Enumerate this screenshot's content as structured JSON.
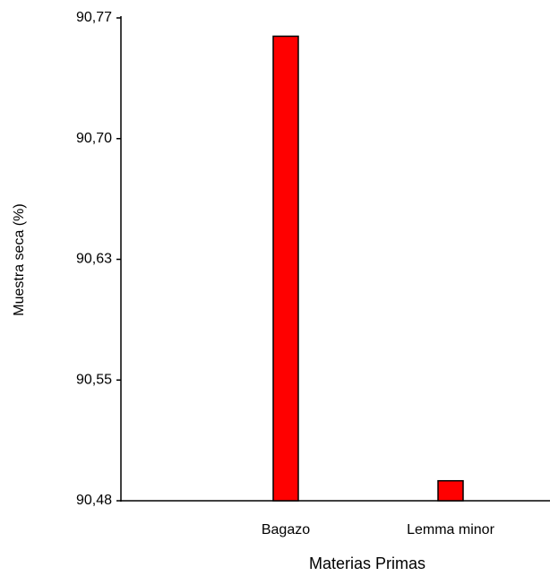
{
  "chart_data": {
    "type": "bar",
    "x_label": "Materias Primas",
    "y_label": "Muestra seca (%)",
    "categories": [
      "Bagazo",
      "Lemma minor"
    ],
    "values": [
      90.759,
      90.492
    ],
    "color": "#ff0000",
    "ylim": [
      90.48,
      90.77
    ],
    "yticks": [
      {
        "value": 90.48,
        "label": "90,48"
      },
      {
        "value": 90.5525,
        "label": "90,55"
      },
      {
        "value": 90.625,
        "label": "90,63"
      },
      {
        "value": 90.6975,
        "label": "90,70"
      },
      {
        "value": 90.77,
        "label": "90,77"
      }
    ],
    "grid": false
  }
}
